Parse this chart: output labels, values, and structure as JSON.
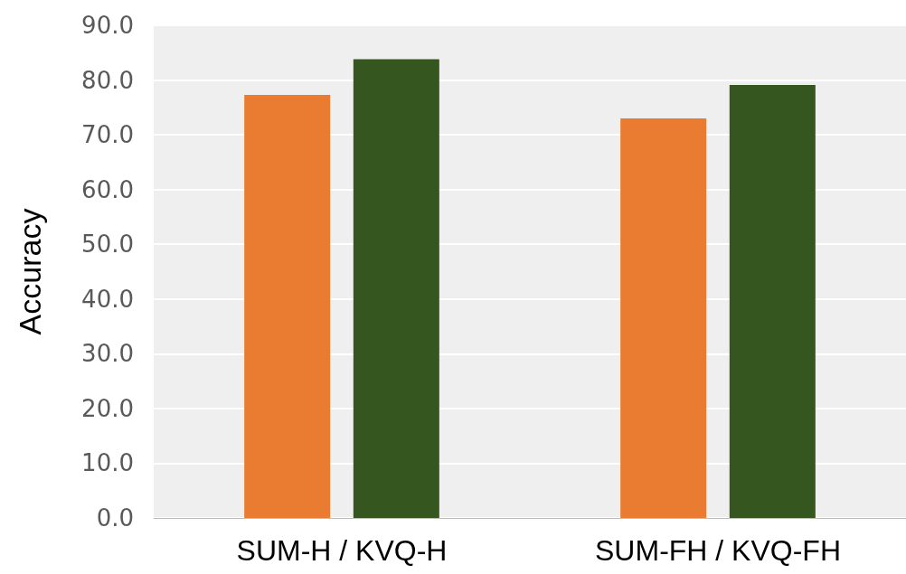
{
  "chart_data": {
    "type": "bar",
    "ylabel": "Accuracy",
    "categories": [
      "SUM-H / KVQ-H",
      "SUM-FH / KVQ-FH"
    ],
    "series": [
      {
        "color": "#e97c31",
        "values": [
          77.3,
          73.0
        ]
      },
      {
        "color": "#365620",
        "values": [
          83.8,
          79.1
        ]
      }
    ],
    "ylim": [
      0,
      90
    ],
    "yticks": [
      {
        "value": 0,
        "label": "0.0"
      },
      {
        "value": 10,
        "label": "10.0"
      },
      {
        "value": 20,
        "label": "20.0"
      },
      {
        "value": 30,
        "label": "30.0"
      },
      {
        "value": 40,
        "label": "40.0"
      },
      {
        "value": 50,
        "label": "50.0"
      },
      {
        "value": 60,
        "label": "60.0"
      },
      {
        "value": 70,
        "label": "70.0"
      },
      {
        "value": 80,
        "label": "80.0"
      },
      {
        "value": 90,
        "label": "90.0"
      }
    ],
    "grid": "y"
  }
}
